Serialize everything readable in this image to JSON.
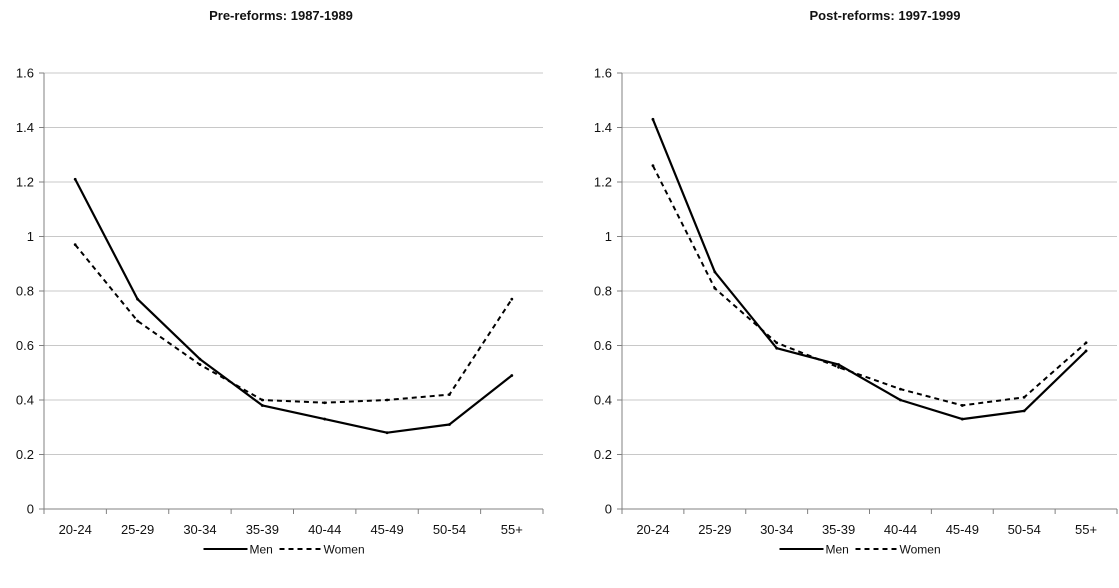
{
  "chart_data": [
    {
      "type": "line",
      "title": "Pre-reforms: 1987-1989",
      "xlabel": "",
      "ylabel": "",
      "categories": [
        "20-24",
        "25-29",
        "30-34",
        "35-39",
        "40-44",
        "45-49",
        "50-54",
        "55+"
      ],
      "ylim": [
        0,
        1.6
      ],
      "yticks": [
        "0",
        "0.2",
        "0.4",
        "0.6",
        "0.8",
        "1",
        "1.2",
        "1.4",
        "1.6"
      ],
      "grid": true,
      "legend_position": "bottom",
      "series": [
        {
          "name": "Men",
          "style": "solid",
          "color": "#000000",
          "values": [
            1.21,
            0.77,
            0.55,
            0.38,
            0.33,
            0.28,
            0.31,
            0.49
          ]
        },
        {
          "name": "Women",
          "style": "dashed",
          "color": "#000000",
          "values": [
            0.97,
            0.69,
            0.53,
            0.4,
            0.39,
            0.4,
            0.42,
            0.77
          ]
        }
      ]
    },
    {
      "type": "line",
      "title": "Post-reforms: 1997-1999",
      "xlabel": "",
      "ylabel": "",
      "categories": [
        "20-24",
        "25-29",
        "30-34",
        "35-39",
        "40-44",
        "45-49",
        "50-54",
        "55+"
      ],
      "ylim": [
        0,
        1.6
      ],
      "yticks": [
        "0",
        "0.2",
        "0.4",
        "0.6",
        "0.8",
        "1",
        "1.2",
        "1.4",
        "1.6"
      ],
      "grid": true,
      "legend_position": "bottom",
      "series": [
        {
          "name": "Men",
          "style": "solid",
          "color": "#000000",
          "values": [
            1.43,
            0.87,
            0.59,
            0.53,
            0.4,
            0.33,
            0.36,
            0.58
          ]
        },
        {
          "name": "Women",
          "style": "dashed",
          "color": "#000000",
          "values": [
            1.26,
            0.81,
            0.61,
            0.52,
            0.44,
            0.38,
            0.41,
            0.61
          ]
        }
      ]
    }
  ],
  "colors": {
    "gridline": "#c8c8c8",
    "axis": "#808080",
    "line": "#000000"
  }
}
